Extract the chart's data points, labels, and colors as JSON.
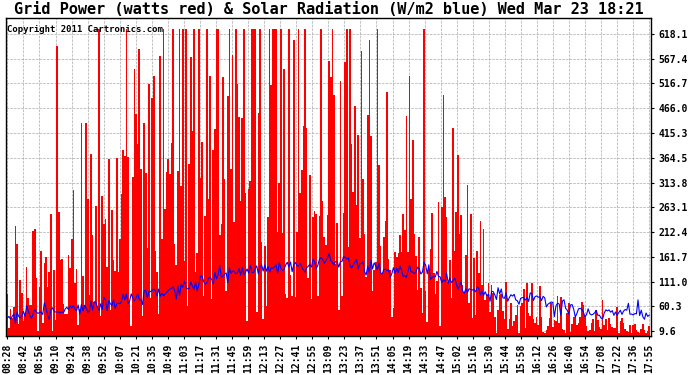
{
  "title": "Grid Power (watts red) & Solar Radiation (W/m2 blue) Wed Mar 23 18:21",
  "copyright_text": "Copyright 2011 Cartronics.com",
  "yticks": [
    9.6,
    60.3,
    111.0,
    161.7,
    212.4,
    263.1,
    313.8,
    364.5,
    415.3,
    466.0,
    516.7,
    567.4,
    618.1
  ],
  "ymin": 0,
  "ymax": 650,
  "bar_color": "red",
  "line_color": "blue",
  "bg_color": "white",
  "grid_color": "#aaaaaa",
  "title_fontsize": 11,
  "tick_fontsize": 7,
  "copyright_fontsize": 6.5,
  "x_tick_labels": [
    "08:28",
    "08:42",
    "08:56",
    "09:10",
    "09:24",
    "09:38",
    "09:52",
    "10:07",
    "10:21",
    "10:35",
    "10:49",
    "11:03",
    "11:17",
    "11:31",
    "11:45",
    "11:59",
    "12:13",
    "12:27",
    "12:41",
    "12:55",
    "13:09",
    "13:23",
    "13:37",
    "13:51",
    "14:05",
    "14:19",
    "14:33",
    "14:47",
    "15:02",
    "15:16",
    "15:30",
    "15:44",
    "15:58",
    "16:12",
    "16:26",
    "16:40",
    "16:54",
    "17:08",
    "17:22",
    "17:36",
    "17:55"
  ],
  "n_points": 400,
  "seed": 123
}
